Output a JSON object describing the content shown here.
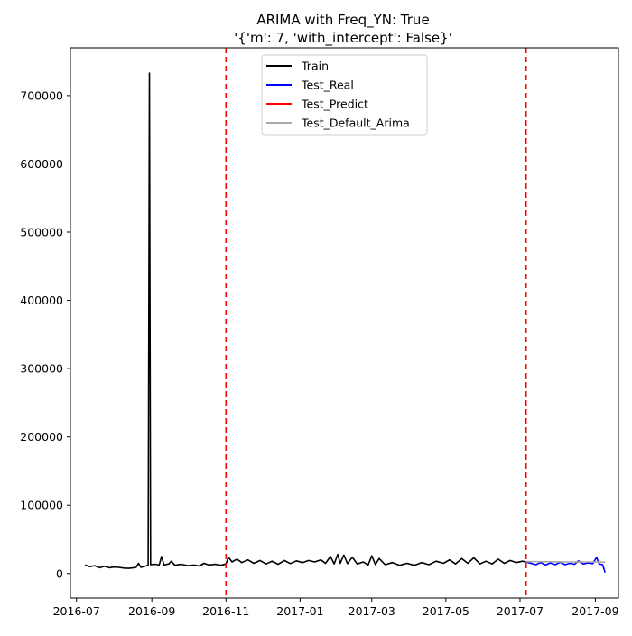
{
  "chart_data": {
    "type": "line",
    "title": "ARIMA with Freq_YN: True",
    "subtitle": "'{'m': 7, 'with_intercept': False}'",
    "xlabel": "",
    "ylabel": "",
    "x_axis_type": "date",
    "xlim": [
      "2016-06-26",
      "2017-09-20"
    ],
    "ylim": [
      -36000,
      770000
    ],
    "grid": false,
    "legend_position": "top-center",
    "x_ticks": [
      {
        "value": "2016-07-01",
        "label": "2016-07"
      },
      {
        "value": "2016-09-01",
        "label": "2016-09"
      },
      {
        "value": "2016-11-01",
        "label": "2016-11"
      },
      {
        "value": "2017-01-01",
        "label": "2017-01"
      },
      {
        "value": "2017-03-01",
        "label": "2017-03"
      },
      {
        "value": "2017-05-01",
        "label": "2017-05"
      },
      {
        "value": "2017-07-01",
        "label": "2017-07"
      },
      {
        "value": "2017-09-01",
        "label": "2017-09"
      }
    ],
    "y_ticks": [
      {
        "value": 0,
        "label": "0"
      },
      {
        "value": 100000,
        "label": "100000"
      },
      {
        "value": 200000,
        "label": "200000"
      },
      {
        "value": 300000,
        "label": "300000"
      },
      {
        "value": 400000,
        "label": "400000"
      },
      {
        "value": 500000,
        "label": "500000"
      },
      {
        "value": 600000,
        "label": "600000"
      },
      {
        "value": 700000,
        "label": "700000"
      }
    ],
    "vlines": [
      {
        "x": "2016-11-01",
        "color": "#ff0000",
        "style": "dashed"
      },
      {
        "x": "2017-07-06",
        "color": "#ff0000",
        "style": "dashed"
      }
    ],
    "series": [
      {
        "name": "Train",
        "color": "#000000",
        "points": [
          [
            "2016-07-08",
            12500
          ],
          [
            "2016-07-12",
            10000
          ],
          [
            "2016-07-16",
            11500
          ],
          [
            "2016-07-20",
            8500
          ],
          [
            "2016-07-24",
            10500
          ],
          [
            "2016-07-28",
            8500
          ],
          [
            "2016-08-01",
            9500
          ],
          [
            "2016-08-05",
            9000
          ],
          [
            "2016-08-09",
            8000
          ],
          [
            "2016-08-13",
            7500
          ],
          [
            "2016-08-17",
            8500
          ],
          [
            "2016-08-19",
            9000
          ],
          [
            "2016-08-21",
            15000
          ],
          [
            "2016-08-23",
            9000
          ],
          [
            "2016-08-27",
            11000
          ],
          [
            "2016-08-29",
            12000
          ],
          [
            "2016-08-30",
            733000
          ],
          [
            "2016-08-31",
            13000
          ],
          [
            "2016-09-04",
            13500
          ],
          [
            "2016-09-07",
            12500
          ],
          [
            "2016-09-09",
            25000
          ],
          [
            "2016-09-11",
            12500
          ],
          [
            "2016-09-15",
            14000
          ],
          [
            "2016-09-17",
            18000
          ],
          [
            "2016-09-20",
            12000
          ],
          [
            "2016-09-25",
            13500
          ],
          [
            "2016-10-01",
            11500
          ],
          [
            "2016-10-06",
            12500
          ],
          [
            "2016-10-10",
            11000
          ],
          [
            "2016-10-14",
            15000
          ],
          [
            "2016-10-18",
            12500
          ],
          [
            "2016-10-23",
            13500
          ],
          [
            "2016-10-28",
            12000
          ],
          [
            "2016-11-01",
            14000
          ],
          [
            "2016-11-03",
            24000
          ],
          [
            "2016-11-06",
            17000
          ],
          [
            "2016-11-10",
            21000
          ],
          [
            "2016-11-14",
            16000
          ],
          [
            "2016-11-19",
            20000
          ],
          [
            "2016-11-24",
            15000
          ],
          [
            "2016-11-29",
            19000
          ],
          [
            "2016-12-04",
            14000
          ],
          [
            "2016-12-09",
            18000
          ],
          [
            "2016-12-14",
            13500
          ],
          [
            "2016-12-19",
            19000
          ],
          [
            "2016-12-24",
            14500
          ],
          [
            "2016-12-29",
            18500
          ],
          [
            "2017-01-03",
            16000
          ],
          [
            "2017-01-08",
            19000
          ],
          [
            "2017-01-13",
            17000
          ],
          [
            "2017-01-18",
            20000
          ],
          [
            "2017-01-22",
            15000
          ],
          [
            "2017-01-26",
            25000
          ],
          [
            "2017-01-29",
            14000
          ],
          [
            "2017-02-01",
            28000
          ],
          [
            "2017-02-03",
            15000
          ],
          [
            "2017-02-06",
            27000
          ],
          [
            "2017-02-09",
            14500
          ],
          [
            "2017-02-13",
            24000
          ],
          [
            "2017-02-17",
            14000
          ],
          [
            "2017-02-22",
            17000
          ],
          [
            "2017-02-26",
            12500
          ],
          [
            "2017-03-01",
            26000
          ],
          [
            "2017-03-04",
            13000
          ],
          [
            "2017-03-07",
            22000
          ],
          [
            "2017-03-12",
            13000
          ],
          [
            "2017-03-18",
            16000
          ],
          [
            "2017-03-24",
            12000
          ],
          [
            "2017-03-30",
            15000
          ],
          [
            "2017-04-05",
            12000
          ],
          [
            "2017-04-11",
            16000
          ],
          [
            "2017-04-17",
            13000
          ],
          [
            "2017-04-23",
            18000
          ],
          [
            "2017-04-29",
            15000
          ],
          [
            "2017-05-04",
            20000
          ],
          [
            "2017-05-09",
            14000
          ],
          [
            "2017-05-14",
            22000
          ],
          [
            "2017-05-19",
            15000
          ],
          [
            "2017-05-24",
            23000
          ],
          [
            "2017-05-29",
            14000
          ],
          [
            "2017-06-03",
            18000
          ],
          [
            "2017-06-08",
            14000
          ],
          [
            "2017-06-13",
            21000
          ],
          [
            "2017-06-18",
            15000
          ],
          [
            "2017-06-23",
            19000
          ],
          [
            "2017-06-28",
            16000
          ],
          [
            "2017-07-03",
            18000
          ],
          [
            "2017-07-06",
            17000
          ]
        ]
      },
      {
        "name": "Test_Real",
        "color": "#0000ff",
        "points": [
          [
            "2017-07-06",
            17000
          ],
          [
            "2017-07-10",
            15000
          ],
          [
            "2017-07-14",
            13000
          ],
          [
            "2017-07-18",
            16000
          ],
          [
            "2017-07-22",
            12500
          ],
          [
            "2017-07-26",
            15500
          ],
          [
            "2017-07-30",
            13000
          ],
          [
            "2017-08-03",
            16500
          ],
          [
            "2017-08-07",
            13000
          ],
          [
            "2017-08-11",
            15000
          ],
          [
            "2017-08-15",
            13500
          ],
          [
            "2017-08-18",
            18500
          ],
          [
            "2017-08-22",
            14000
          ],
          [
            "2017-08-26",
            15500
          ],
          [
            "2017-08-30",
            14500
          ],
          [
            "2017-09-02",
            24000
          ],
          [
            "2017-09-04",
            14000
          ],
          [
            "2017-09-07",
            13000
          ],
          [
            "2017-09-09",
            1500
          ]
        ]
      },
      {
        "name": "Test_Predict",
        "color": "#ff0000",
        "points": []
      },
      {
        "name": "Test_Default_Arima",
        "color": "#a9a9a9",
        "points": [
          [
            "2017-07-06",
            17500
          ],
          [
            "2017-07-15",
            17300
          ],
          [
            "2017-07-25",
            17200
          ],
          [
            "2017-08-04",
            17100
          ],
          [
            "2017-08-14",
            17000
          ],
          [
            "2017-08-24",
            16900
          ],
          [
            "2017-09-03",
            16800
          ],
          [
            "2017-09-09",
            16700
          ]
        ]
      }
    ]
  }
}
